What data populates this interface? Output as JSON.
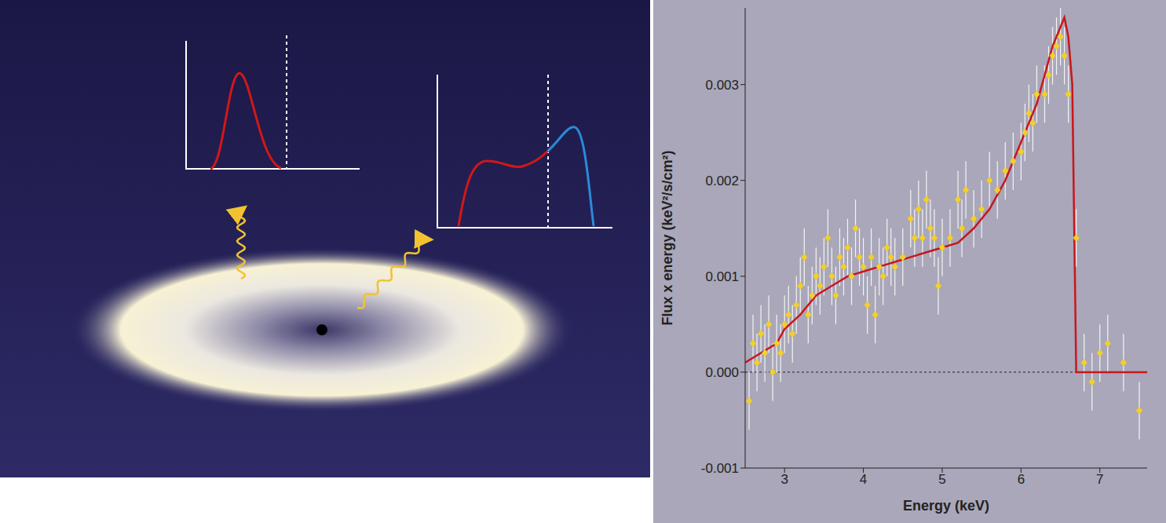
{
  "chart_data": {
    "type": "scatter",
    "x_label": "Energy (keV)",
    "y_label": "Flux x energy (keV²/s/cm²)",
    "xlim": [
      2.5,
      7.6
    ],
    "xticks": [
      3,
      4,
      5,
      6,
      7
    ],
    "ylim": [
      -0.001,
      0.0038
    ],
    "yticks": [
      -0.001,
      {
        "value": 0,
        "label": "0.000"
      },
      0.001,
      0.002,
      0.003
    ],
    "grid": false,
    "hlines": [
      0
    ],
    "series": [
      {
        "type": "line",
        "color": "#c8161d",
        "line_style": "solid",
        "x": [
          2.5,
          2.7,
          2.9,
          3.0,
          3.2,
          3.4,
          3.6,
          3.8,
          4.0,
          4.2,
          4.4,
          4.6,
          4.8,
          5.0,
          5.2,
          5.4,
          5.6,
          5.8,
          6.0,
          6.2,
          6.4,
          6.5,
          6.55,
          6.6,
          6.65,
          6.7,
          7.6
        ],
        "values": [
          0.0001,
          0.0002,
          0.0003,
          0.00045,
          0.0006,
          0.0008,
          0.0009,
          0.001,
          0.00105,
          0.0011,
          0.00115,
          0.0012,
          0.00125,
          0.0013,
          0.00135,
          0.0015,
          0.0017,
          0.002,
          0.0024,
          0.0028,
          0.0034,
          0.0036,
          0.0037,
          0.0035,
          0.003,
          0.0,
          0.0
        ]
      },
      {
        "type": "scatter",
        "color": "#f2d02b",
        "marker": "diamond",
        "x": [
          2.55,
          2.6,
          2.65,
          2.7,
          2.75,
          2.8,
          2.85,
          2.9,
          2.95,
          3.0,
          3.05,
          3.1,
          3.15,
          3.2,
          3.25,
          3.3,
          3.35,
          3.4,
          3.45,
          3.5,
          3.55,
          3.6,
          3.65,
          3.7,
          3.75,
          3.8,
          3.85,
          3.9,
          3.95,
          4.0,
          4.05,
          4.1,
          4.15,
          4.2,
          4.25,
          4.3,
          4.35,
          4.4,
          4.5,
          4.6,
          4.65,
          4.7,
          4.75,
          4.8,
          4.85,
          4.9,
          4.95,
          5.0,
          5.1,
          5.2,
          5.25,
          5.3,
          5.4,
          5.5,
          5.6,
          5.7,
          5.8,
          5.9,
          6.0,
          6.05,
          6.1,
          6.15,
          6.2,
          6.3,
          6.35,
          6.4,
          6.45,
          6.5,
          6.55,
          6.6,
          6.7,
          6.8,
          6.9,
          7.0,
          7.1,
          7.3,
          7.5
        ],
        "values": [
          -0.0003,
          0.0003,
          0.0001,
          0.0004,
          0.0002,
          0.0005,
          0.0,
          0.0003,
          0.0002,
          0.0005,
          0.0006,
          0.0004,
          0.0007,
          0.0009,
          0.0012,
          0.0006,
          0.0008,
          0.001,
          0.0009,
          0.0011,
          0.0014,
          0.001,
          0.0008,
          0.0012,
          0.0011,
          0.0013,
          0.001,
          0.0015,
          0.0012,
          0.0011,
          0.0007,
          0.0012,
          0.0006,
          0.0011,
          0.001,
          0.0013,
          0.0012,
          0.0011,
          0.0012,
          0.0016,
          0.0014,
          0.0017,
          0.0014,
          0.0018,
          0.0015,
          0.0014,
          0.0009,
          0.0013,
          0.0014,
          0.0018,
          0.0015,
          0.0019,
          0.0016,
          0.0017,
          0.002,
          0.0019,
          0.0021,
          0.0022,
          0.0023,
          0.0025,
          0.0027,
          0.0026,
          0.0029,
          0.0029,
          0.0031,
          0.0033,
          0.0034,
          0.0035,
          0.0033,
          0.0029,
          0.0014,
          0.0001,
          -0.0001,
          0.0002,
          0.0003,
          0.0001,
          -0.0004
        ],
        "errors": [
          0.0003,
          0.0003,
          0.0003,
          0.0003,
          0.0003,
          0.0003,
          0.0003,
          0.0003,
          0.0003,
          0.0003,
          0.0003,
          0.0003,
          0.0003,
          0.0003,
          0.0003,
          0.0003,
          0.0003,
          0.0003,
          0.0003,
          0.0003,
          0.0003,
          0.0003,
          0.0003,
          0.0003,
          0.0003,
          0.0003,
          0.0003,
          0.0003,
          0.0003,
          0.0003,
          0.0003,
          0.0003,
          0.0003,
          0.0003,
          0.0003,
          0.0003,
          0.0003,
          0.0003,
          0.0003,
          0.0003,
          0.0003,
          0.0003,
          0.0003,
          0.0003,
          0.0003,
          0.0003,
          0.0003,
          0.0003,
          0.0003,
          0.0003,
          0.0003,
          0.0003,
          0.0003,
          0.0003,
          0.0003,
          0.0003,
          0.0003,
          0.0003,
          0.0003,
          0.0003,
          0.0003,
          0.0003,
          0.0003,
          0.0003,
          0.0003,
          0.0003,
          0.0003,
          0.0003,
          0.0003,
          0.0003,
          0.0003,
          0.0003,
          0.0003,
          0.0003,
          0.0003,
          0.0003,
          0.0003
        ]
      }
    ]
  }
}
